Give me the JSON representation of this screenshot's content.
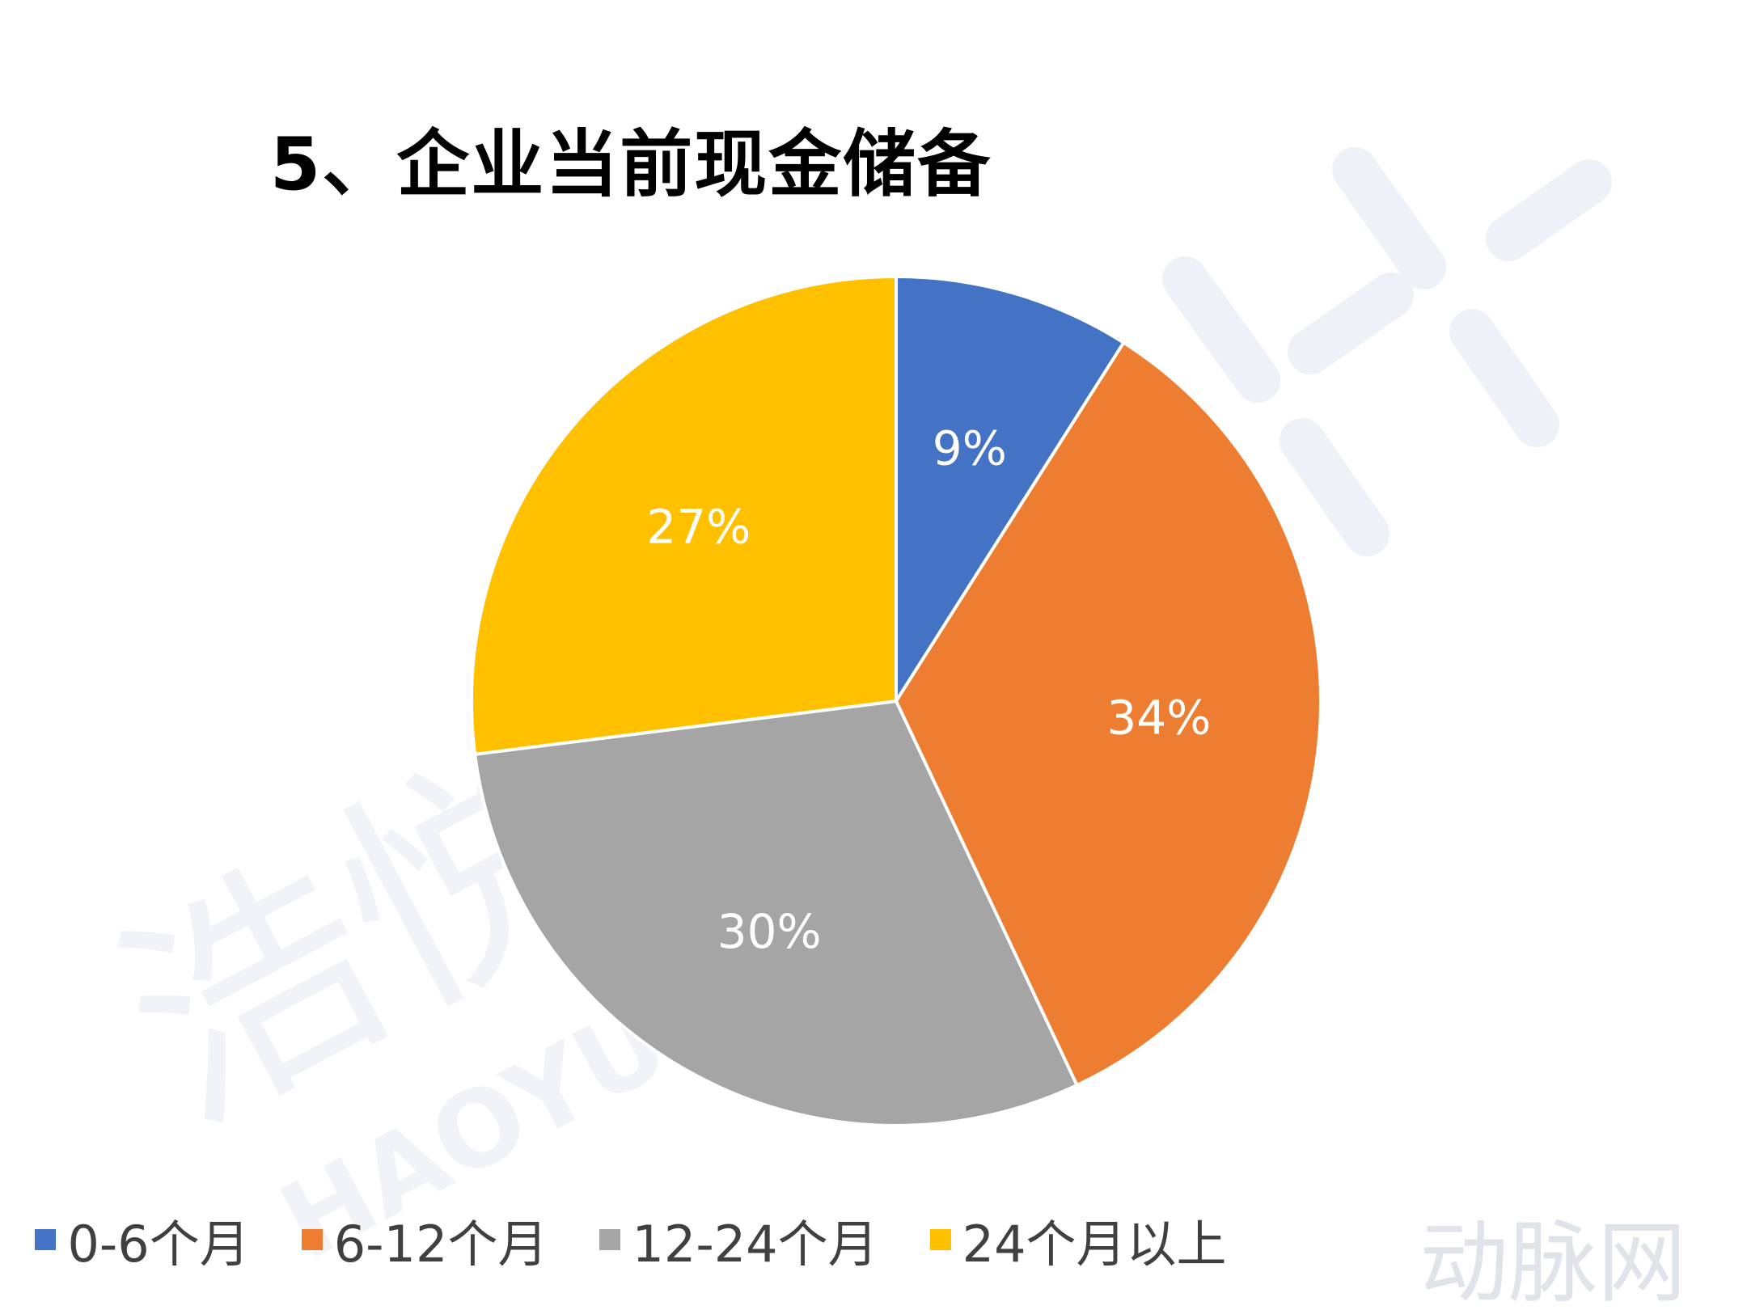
{
  "chart_data": {
    "type": "pie",
    "title": "5、企业当前现金储备",
    "categories": [
      "0-6个月",
      "6-12个月",
      "12-24个月",
      "24个月以上"
    ],
    "values": [
      9,
      34,
      30,
      27
    ],
    "labels": [
      "9%",
      "34%",
      "30%",
      "27%"
    ],
    "colors": [
      "#4472C4",
      "#ED7D31",
      "#A5A5A5",
      "#FFC000"
    ],
    "legend_position": "bottom",
    "start_angle": "12 o'clock, clockwise"
  },
  "watermark": {
    "text": "浩悦",
    "subtext": "HAOYUE",
    "brand": "动脉网"
  }
}
